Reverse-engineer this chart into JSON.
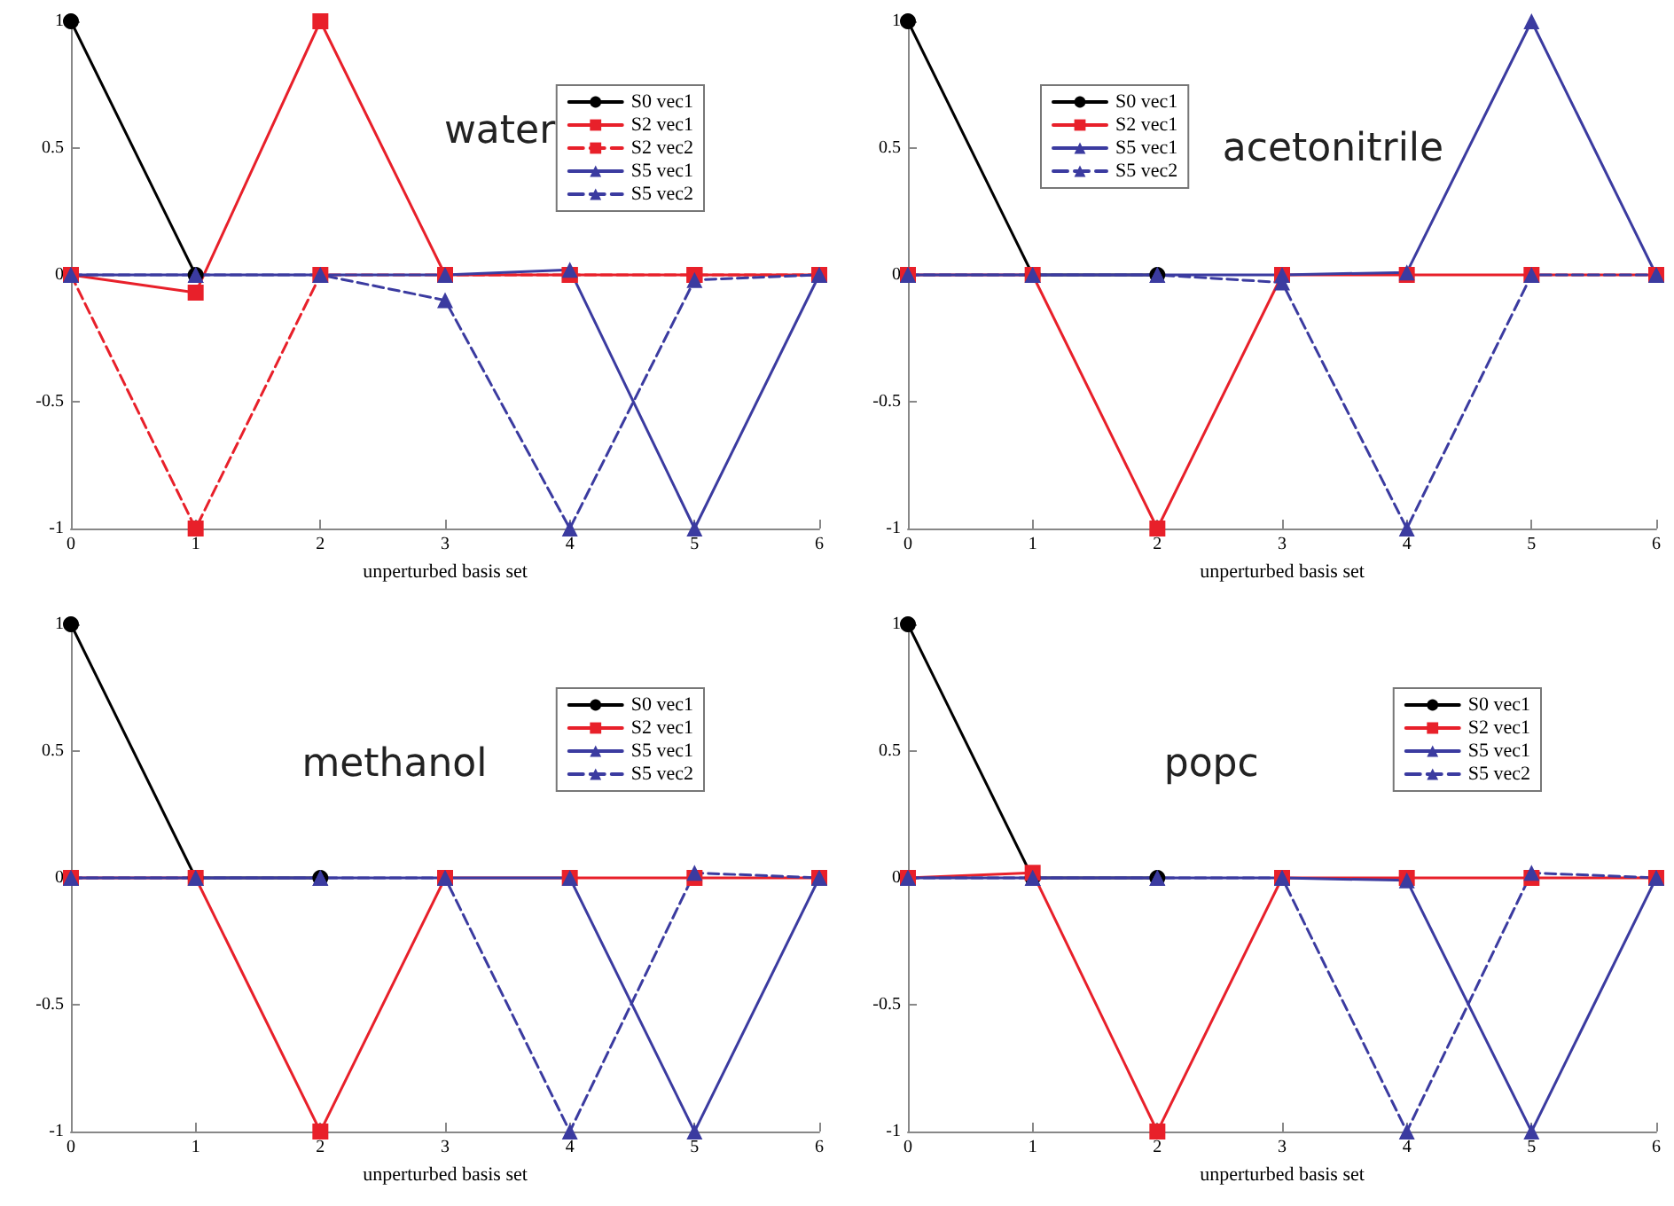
{
  "chart_data": [
    {
      "type": "line",
      "title": "water",
      "xlabel": "unperturbed basis set",
      "x": [
        0,
        1,
        2,
        3,
        4,
        5,
        6
      ],
      "xlim": [
        0,
        6
      ],
      "xticks": [
        0,
        1,
        2,
        3,
        4,
        5,
        6
      ],
      "ylim": [
        -1,
        1
      ],
      "yticks": [
        -1,
        -0.5,
        0,
        0.5,
        1
      ],
      "grid": false,
      "legend": "top right",
      "series": [
        {
          "name": "S0 vec1",
          "color": "#000000",
          "marker": "circle",
          "line_style": "solid",
          "values": [
            1,
            0,
            null,
            null,
            null,
            null,
            null
          ]
        },
        {
          "name": "S2 vec1",
          "color": "#e8202a",
          "marker": "square",
          "line_style": "solid",
          "values": [
            0,
            -0.07,
            1,
            0,
            0,
            0,
            0
          ]
        },
        {
          "name": "S2 vec2",
          "color": "#e8202a",
          "marker": "square",
          "line_style": "dashed",
          "values": [
            0,
            -1,
            0,
            0,
            0,
            0,
            0
          ]
        },
        {
          "name": "S5 vec1",
          "color": "#3b3ba0",
          "marker": "triangle",
          "line_style": "solid",
          "values": [
            0,
            0,
            0,
            0,
            0.02,
            -1,
            0
          ]
        },
        {
          "name": "S5 vec2",
          "color": "#3b3ba0",
          "marker": "triangle",
          "line_style": "dashed",
          "values": [
            0,
            0,
            0,
            -0.1,
            -1,
            -0.02,
            0
          ]
        }
      ]
    },
    {
      "type": "line",
      "title": "acetonitrile",
      "xlabel": "unperturbed basis set",
      "x": [
        0,
        1,
        2,
        3,
        4,
        5,
        6
      ],
      "xlim": [
        0,
        6
      ],
      "xticks": [
        0,
        1,
        2,
        3,
        4,
        5,
        6
      ],
      "ylim": [
        -1,
        1
      ],
      "yticks": [
        -1,
        -0.5,
        0,
        0.5,
        1
      ],
      "grid": false,
      "legend": "top left",
      "series": [
        {
          "name": "S0 vec1",
          "color": "#000000",
          "marker": "circle",
          "line_style": "solid",
          "values": [
            1,
            0,
            0,
            null,
            null,
            null,
            null
          ]
        },
        {
          "name": "S2 vec1",
          "color": "#e8202a",
          "marker": "square",
          "line_style": "solid",
          "values": [
            0,
            0,
            -1,
            0,
            0,
            0,
            0
          ]
        },
        {
          "name": "S5 vec1",
          "color": "#3b3ba0",
          "marker": "triangle",
          "line_style": "solid",
          "values": [
            0,
            0,
            0,
            0,
            0.01,
            1,
            0
          ]
        },
        {
          "name": "S5 vec2",
          "color": "#3b3ba0",
          "marker": "triangle",
          "line_style": "dashed",
          "values": [
            0,
            0,
            0,
            -0.03,
            -1,
            0,
            0
          ]
        }
      ]
    },
    {
      "type": "line",
      "title": "methanol",
      "xlabel": "unperturbed basis set",
      "x": [
        0,
        1,
        2,
        3,
        4,
        5,
        6
      ],
      "xlim": [
        0,
        6
      ],
      "xticks": [
        0,
        1,
        2,
        3,
        4,
        5,
        6
      ],
      "ylim": [
        -1,
        1
      ],
      "yticks": [
        -1,
        -0.5,
        0,
        0.5,
        1
      ],
      "grid": false,
      "legend": "top right",
      "series": [
        {
          "name": "S0 vec1",
          "color": "#000000",
          "marker": "circle",
          "line_style": "solid",
          "values": [
            1,
            0,
            0,
            null,
            null,
            null,
            null
          ]
        },
        {
          "name": "S2 vec1",
          "color": "#e8202a",
          "marker": "square",
          "line_style": "solid",
          "values": [
            0,
            0,
            -1,
            0,
            0,
            0,
            0
          ]
        },
        {
          "name": "S5 vec1",
          "color": "#3b3ba0",
          "marker": "triangle",
          "line_style": "solid",
          "values": [
            0,
            0,
            0,
            0,
            0,
            -1,
            0
          ]
        },
        {
          "name": "S5 vec2",
          "color": "#3b3ba0",
          "marker": "triangle",
          "line_style": "dashed",
          "values": [
            0,
            0,
            0,
            0,
            -1,
            0.02,
            0
          ]
        }
      ]
    },
    {
      "type": "line",
      "title": "popc",
      "xlabel": "unperturbed basis set",
      "x": [
        0,
        1,
        2,
        3,
        4,
        5,
        6
      ],
      "xlim": [
        0,
        6
      ],
      "xticks": [
        0,
        1,
        2,
        3,
        4,
        5,
        6
      ],
      "ylim": [
        -1,
        1
      ],
      "yticks": [
        -1,
        -0.5,
        0,
        0.5,
        1
      ],
      "grid": false,
      "legend": "top right",
      "series": [
        {
          "name": "S0 vec1",
          "color": "#000000",
          "marker": "circle",
          "line_style": "solid",
          "values": [
            1,
            0,
            0,
            null,
            null,
            null,
            null
          ]
        },
        {
          "name": "S2 vec1",
          "color": "#e8202a",
          "marker": "square",
          "line_style": "solid",
          "values": [
            0,
            0.02,
            -1,
            0,
            0,
            0,
            0
          ]
        },
        {
          "name": "S5 vec1",
          "color": "#3b3ba0",
          "marker": "triangle",
          "line_style": "solid",
          "values": [
            0,
            0,
            0,
            0,
            -0.01,
            -1,
            0
          ]
        },
        {
          "name": "S5 vec2",
          "color": "#3b3ba0",
          "marker": "triangle",
          "line_style": "dashed",
          "values": [
            0,
            0,
            0,
            0,
            -1,
            0.02,
            0
          ]
        }
      ]
    }
  ]
}
